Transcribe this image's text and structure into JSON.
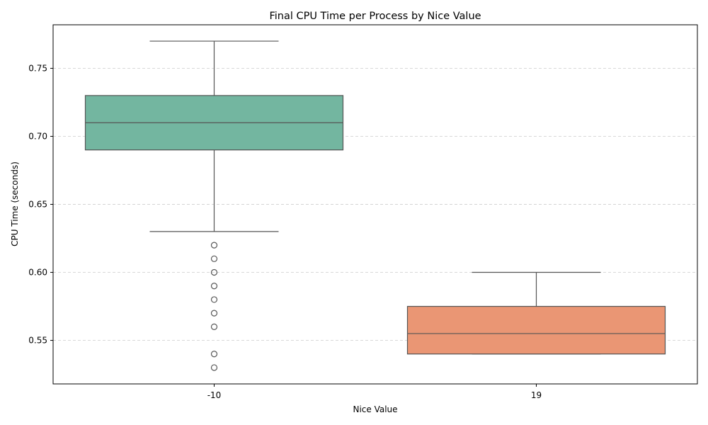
{
  "chart_data": {
    "type": "box",
    "title": "Final CPU Time per Process by Nice Value",
    "xlabel": "Nice Value",
    "ylabel": "CPU Time (seconds)",
    "ylim": [
      0.518,
      0.782
    ],
    "yticks": [
      0.55,
      0.6,
      0.65,
      0.7,
      0.75
    ],
    "grid": {
      "axis": "y",
      "style": "dashed"
    },
    "categories": [
      "-10",
      "19"
    ],
    "series": [
      {
        "category": "-10",
        "whisker_low": 0.63,
        "q1": 0.69,
        "median": 0.71,
        "q3": 0.73,
        "whisker_high": 0.77,
        "outliers": [
          0.62,
          0.61,
          0.6,
          0.59,
          0.58,
          0.57,
          0.56,
          0.54,
          0.53
        ],
        "color": "#73b6a0"
      },
      {
        "category": "19",
        "whisker_low": 0.54,
        "q1": 0.54,
        "median": 0.555,
        "q3": 0.575,
        "whisker_high": 0.6,
        "outliers": [],
        "color": "#ea9674"
      }
    ],
    "colors": {
      "line": "#555555",
      "grid": "#d3d3d3",
      "axis": "#000000"
    }
  }
}
